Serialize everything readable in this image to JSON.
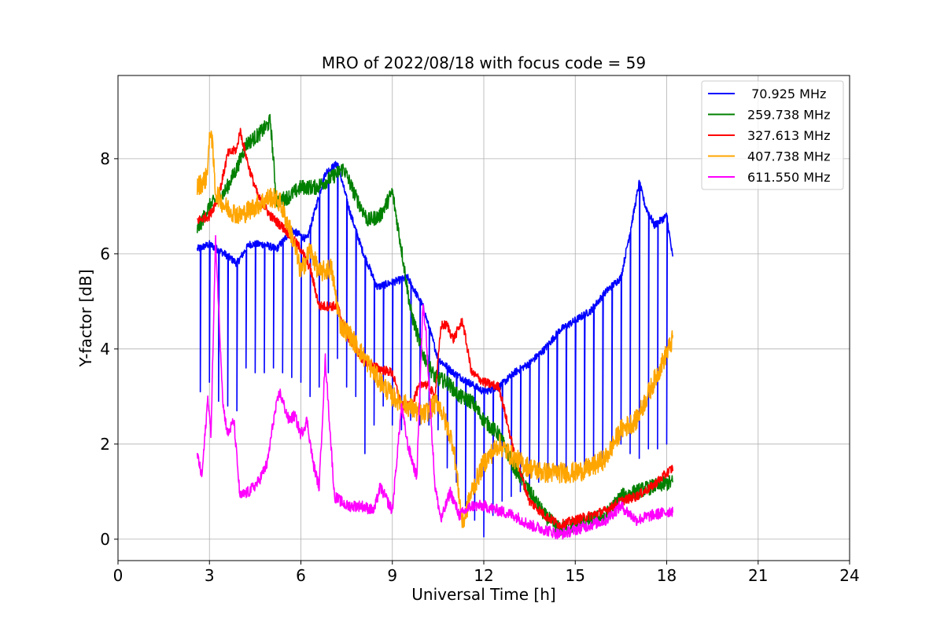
{
  "chart_data": {
    "type": "line",
    "title": "MRO of 2022/08/18 with focus code = 59",
    "xlabel": "Universal Time [h]",
    "ylabel": "Y-factor [dB]",
    "xlim": [
      0,
      24
    ],
    "ylim": [
      -0.45,
      9.75
    ],
    "xticks": [
      0,
      3,
      6,
      9,
      12,
      15,
      18,
      21,
      24
    ],
    "yticks": [
      0,
      2,
      4,
      6,
      8
    ],
    "grid": true,
    "legend_position": "top-right",
    "series": [
      {
        "name": " 70.925 MHz",
        "color": "#0000ff",
        "x": [
          2.6,
          3.0,
          3.5,
          3.9,
          4.3,
          4.8,
          5.2,
          5.7,
          6.2,
          6.8,
          7.2,
          7.6,
          8.0,
          8.5,
          9.0,
          9.5,
          10.0,
          10.5,
          11.0,
          11.5,
          12.0,
          12.5,
          13.0,
          13.5,
          14.0,
          14.5,
          15.0,
          15.5,
          16.0,
          16.5,
          16.9,
          17.1,
          17.3,
          17.6,
          18.0,
          18.2
        ],
        "y": [
          6.1,
          6.2,
          6.0,
          5.8,
          6.2,
          6.2,
          6.1,
          6.5,
          6.3,
          7.7,
          7.9,
          6.9,
          6.1,
          5.3,
          5.4,
          5.5,
          4.9,
          3.8,
          3.5,
          3.3,
          3.1,
          3.2,
          3.5,
          3.7,
          4.0,
          4.4,
          4.6,
          4.8,
          5.2,
          5.5,
          6.8,
          7.5,
          7.0,
          6.6,
          6.8,
          5.9
        ],
        "dropouts": [
          [
            2.7,
            3.1
          ],
          [
            3.0,
            3.3
          ],
          [
            3.3,
            2.9
          ],
          [
            3.6,
            2.8
          ],
          [
            3.9,
            2.7
          ],
          [
            4.2,
            3.6
          ],
          [
            4.5,
            3.5
          ],
          [
            4.8,
            3.5
          ],
          [
            5.1,
            3.6
          ],
          [
            5.4,
            3.5
          ],
          [
            5.7,
            3.4
          ],
          [
            6.0,
            3.3
          ],
          [
            6.3,
            3.0
          ],
          [
            6.6,
            3.2
          ],
          [
            6.9,
            3.5
          ],
          [
            7.2,
            3.8
          ],
          [
            7.5,
            3.2
          ],
          [
            7.8,
            3.0
          ],
          [
            8.1,
            1.8
          ],
          [
            8.4,
            2.4
          ],
          [
            8.7,
            2.8
          ],
          [
            9.0,
            2.4
          ],
          [
            9.3,
            2.3
          ],
          [
            9.6,
            2.5
          ],
          [
            9.9,
            2.4
          ],
          [
            10.2,
            2.4
          ],
          [
            10.5,
            2.3
          ],
          [
            10.8,
            1.5
          ],
          [
            11.1,
            1.2
          ],
          [
            11.4,
            0.7
          ],
          [
            11.7,
            0.4
          ],
          [
            12.0,
            0.05
          ],
          [
            12.3,
            0.5
          ],
          [
            12.6,
            0.8
          ],
          [
            12.9,
            0.9
          ],
          [
            13.2,
            1.0
          ],
          [
            13.5,
            1.1
          ],
          [
            13.8,
            1.2
          ],
          [
            14.1,
            1.2
          ],
          [
            14.4,
            1.3
          ],
          [
            14.7,
            1.4
          ],
          [
            15.0,
            1.4
          ],
          [
            15.3,
            1.5
          ],
          [
            15.6,
            1.6
          ],
          [
            15.9,
            1.7
          ],
          [
            16.2,
            1.8
          ],
          [
            16.5,
            2.0
          ],
          [
            16.8,
            1.8
          ],
          [
            17.1,
            1.7
          ],
          [
            17.4,
            1.9
          ],
          [
            17.7,
            1.9
          ],
          [
            18.0,
            2.0
          ]
        ]
      },
      {
        "name": "259.738 MHz",
        "color": "#008000",
        "x": [
          2.6,
          3.0,
          3.5,
          3.9,
          4.2,
          4.6,
          4.9,
          5.0,
          5.2,
          5.6,
          6.0,
          6.5,
          7.0,
          7.4,
          7.8,
          8.2,
          8.6,
          9.0,
          9.3,
          9.6,
          10.0,
          10.4,
          10.8,
          11.2,
          11.6,
          12.0,
          12.5,
          13.0,
          13.5,
          14.0,
          14.5,
          15.0,
          15.5,
          16.0,
          16.5,
          17.0,
          17.5,
          18.2
        ],
        "y": [
          6.5,
          7.0,
          7.3,
          7.8,
          8.3,
          8.5,
          8.7,
          8.8,
          7.1,
          7.2,
          7.4,
          7.4,
          7.6,
          7.8,
          7.2,
          6.7,
          6.8,
          7.3,
          6.1,
          4.8,
          3.9,
          3.4,
          3.3,
          3.0,
          2.9,
          2.5,
          2.2,
          1.5,
          1.0,
          0.5,
          0.2,
          0.3,
          0.4,
          0.5,
          0.9,
          1.0,
          1.1,
          1.2
        ]
      },
      {
        "name": "327.613 MHz",
        "color": "#ff0000",
        "x": [
          2.6,
          3.0,
          3.3,
          3.6,
          3.9,
          4.0,
          4.3,
          4.6,
          5.0,
          5.5,
          6.0,
          6.3,
          6.6,
          6.9,
          7.2,
          7.5,
          8.0,
          8.5,
          9.0,
          9.3,
          9.6,
          9.8,
          10.0,
          10.2,
          10.4,
          10.6,
          10.8,
          11.0,
          11.3,
          11.6,
          12.0,
          12.5,
          13.0,
          13.5,
          14.0,
          14.5,
          15.0,
          15.5,
          16.0,
          16.5,
          17.0,
          17.5,
          18.2
        ],
        "y": [
          6.7,
          6.8,
          7.2,
          8.1,
          8.2,
          8.6,
          7.8,
          7.2,
          6.8,
          6.5,
          6.1,
          5.7,
          4.9,
          4.9,
          4.9,
          4.3,
          3.8,
          3.6,
          3.5,
          2.8,
          2.8,
          3.1,
          3.3,
          3.2,
          3.0,
          4.5,
          4.5,
          4.2,
          4.6,
          3.5,
          3.3,
          3.2,
          1.8,
          0.8,
          0.5,
          0.3,
          0.4,
          0.5,
          0.6,
          0.8,
          0.9,
          1.1,
          1.5
        ]
      },
      {
        "name": "407.738 MHz",
        "color": "#ffa500",
        "x": [
          2.6,
          2.9,
          3.05,
          3.2,
          3.5,
          4.0,
          4.5,
          5.0,
          5.3,
          5.7,
          6.0,
          6.3,
          6.6,
          7.0,
          7.3,
          7.6,
          8.0,
          8.5,
          9.0,
          9.5,
          10.0,
          10.5,
          11.0,
          11.3,
          11.6,
          12.0,
          12.5,
          13.0,
          13.5,
          14.0,
          14.5,
          15.0,
          15.5,
          16.0,
          16.5,
          17.0,
          17.5,
          18.2
        ],
        "y": [
          7.4,
          7.6,
          8.7,
          7.3,
          7.0,
          6.8,
          7.0,
          7.2,
          7.1,
          6.4,
          5.6,
          6.1,
          5.6,
          5.7,
          4.5,
          4.3,
          3.9,
          3.4,
          3.0,
          2.8,
          2.6,
          2.9,
          2.0,
          0.3,
          1.0,
          1.6,
          2.0,
          1.7,
          1.5,
          1.4,
          1.4,
          1.4,
          1.5,
          1.7,
          2.3,
          2.5,
          3.2,
          4.2
        ]
      },
      {
        "name": "611.550 MHz",
        "color": "#ff00ff",
        "x": [
          2.6,
          2.75,
          2.95,
          3.05,
          3.2,
          3.45,
          3.6,
          3.8,
          4.0,
          4.3,
          4.6,
          4.9,
          5.1,
          5.3,
          5.6,
          5.8,
          6.0,
          6.2,
          6.4,
          6.6,
          6.8,
          7.1,
          7.5,
          8.0,
          8.4,
          8.6,
          9.0,
          9.3,
          9.5,
          9.8,
          10.0,
          10.1,
          10.4,
          10.6,
          10.9,
          11.2,
          11.6,
          12.0,
          12.5,
          13.0,
          13.5,
          14.0,
          14.5,
          15.0,
          15.5,
          16.0,
          16.5,
          17.0,
          17.5,
          18.2
        ],
        "y": [
          1.8,
          1.3,
          3.0,
          2.2,
          6.3,
          2.8,
          2.2,
          2.5,
          0.9,
          1.0,
          1.2,
          1.6,
          2.5,
          3.1,
          2.5,
          2.6,
          2.2,
          2.5,
          1.6,
          1.1,
          3.8,
          0.9,
          0.7,
          0.7,
          0.6,
          1.1,
          0.6,
          2.8,
          2.0,
          1.3,
          4.9,
          4.4,
          1.1,
          0.4,
          1.0,
          0.5,
          0.7,
          0.7,
          0.6,
          0.5,
          0.3,
          0.2,
          0.1,
          0.2,
          0.3,
          0.4,
          0.7,
          0.4,
          0.5,
          0.6
        ]
      }
    ]
  }
}
